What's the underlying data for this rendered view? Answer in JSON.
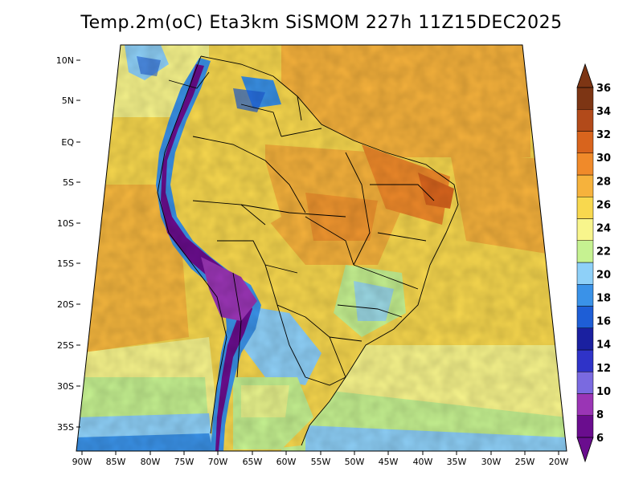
{
  "title": "Temp.2m(oC) Eta3km SiSMOM 227h 11Z15DEC2025",
  "lat_labels": [
    "10N",
    "5N",
    "EQ",
    "5S",
    "10S",
    "15S",
    "20S",
    "25S",
    "30S",
    "35S"
  ],
  "lon_labels": [
    "90W",
    "85W",
    "80W",
    "75W",
    "70W",
    "65W",
    "60W",
    "55W",
    "50W",
    "45W",
    "40W",
    "35W",
    "30W",
    "25W",
    "20W"
  ],
  "colorbar": {
    "labels": [
      "6",
      "8",
      "10",
      "12",
      "14",
      "16",
      "18",
      "20",
      "22",
      "24",
      "26",
      "28",
      "30",
      "32",
      "34",
      "36"
    ],
    "colors": [
      "#6a0d8e",
      "#9a35b5",
      "#7a6ae0",
      "#2f33c8",
      "#1a20a0",
      "#1e5ed6",
      "#3a92e8",
      "#8ed0f8",
      "#c6f291",
      "#f8f58c",
      "#f8d84e",
      "#f6b23c",
      "#f08a2a",
      "#d8641d",
      "#b24a1a",
      "#7d3514"
    ]
  }
}
